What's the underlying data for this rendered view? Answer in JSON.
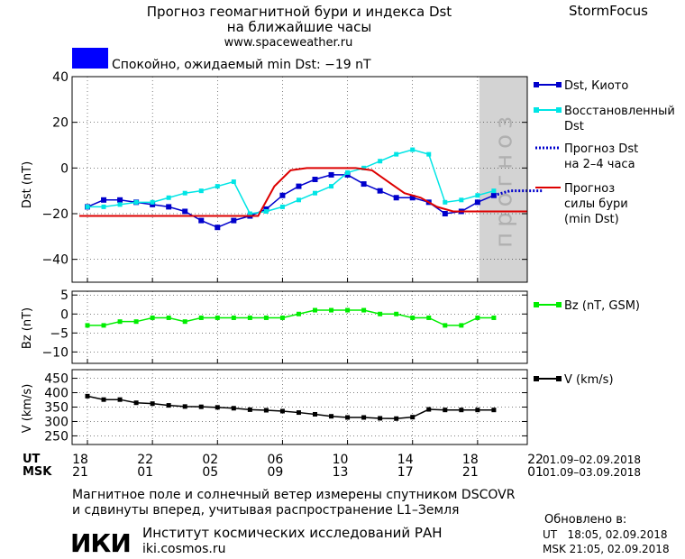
{
  "header": {
    "title_line1": "Прогноз геомагнитной бури и индекса Dst",
    "title_line2": "на ближайшие часы",
    "url": "www.spaceweather.ru",
    "brand": "StormFocus",
    "status_text": "Спокойно, ожидаемый min Dst: −19 nT",
    "status_color": "#0000ff"
  },
  "chart_data": [
    {
      "type": "line",
      "panel": "dst",
      "ylabel": "Dst (nT)",
      "ylim": [
        -50,
        40
      ],
      "yticks": [
        40,
        20,
        0,
        -20,
        -40
      ],
      "forecast_zone_label": "прогноз",
      "x_hours": [
        0,
        26
      ],
      "series": [
        {
          "name": "Dst, Киото",
          "color": "#0000cc",
          "marker": "square",
          "x": [
            0,
            1,
            2,
            3,
            4,
            5,
            6,
            7,
            8,
            9,
            10,
            11,
            12,
            13,
            14,
            15,
            16,
            17,
            18,
            19,
            20,
            21,
            22,
            23,
            24,
            25
          ],
          "y": [
            -17,
            -14,
            -14,
            -15,
            -16,
            -17,
            -19,
            -23,
            -26,
            -23,
            -21,
            -18,
            -12,
            -8,
            -5,
            -3,
            -3,
            -7,
            -10,
            -13,
            -13,
            -15,
            -20,
            -19,
            -15,
            -12
          ]
        },
        {
          "name": "Восстановленный Dst",
          "color": "#00e5e5",
          "marker": "square",
          "x": [
            0,
            1,
            2,
            3,
            4,
            5,
            6,
            7,
            8,
            9,
            10,
            11,
            12,
            13,
            14,
            15,
            16,
            17,
            18,
            19,
            20,
            21,
            22,
            23,
            24,
            25
          ],
          "y": [
            -17,
            -17,
            -16,
            -15,
            -15,
            -13,
            -11,
            -10,
            -8,
            -6,
            -20,
            -19,
            -17,
            -14,
            -11,
            -8,
            -2,
            0,
            3,
            6,
            8,
            6,
            -15,
            -14,
            -12,
            -10
          ]
        },
        {
          "name": "Прогноз Dst на 2-4 часа",
          "color": "#0000cc",
          "style": "dotted",
          "x": [
            25,
            26,
            27,
            28
          ],
          "y": [
            -12,
            -10,
            -10,
            -10
          ]
        },
        {
          "name": "Прогноз силы бури (min Dst)",
          "color": "#dd0000",
          "x": [
            -0.5,
            10.5,
            11.5,
            12.5,
            13.5,
            14.5,
            15.5,
            16.5,
            17.5,
            18.5,
            19.5,
            20.5,
            21.5,
            22.5,
            31.5
          ],
          "y": [
            -21,
            -21,
            -8,
            -1,
            0,
            0,
            0,
            0,
            -1,
            -6,
            -11,
            -13,
            -17,
            -19,
            -19
          ]
        }
      ]
    },
    {
      "type": "line",
      "panel": "bz",
      "ylabel": "Bz (nT)",
      "ylim": [
        -13,
        6
      ],
      "yticks": [
        5,
        0,
        -5,
        -10
      ],
      "series": [
        {
          "name": "Bz (nT, GSM)",
          "color": "#00ee00",
          "marker": "square",
          "x": [
            0,
            1,
            2,
            3,
            4,
            5,
            6,
            7,
            8,
            9,
            10,
            11,
            12,
            13,
            14,
            15,
            16,
            17,
            18,
            19,
            20,
            21,
            22,
            23,
            24,
            25
          ],
          "y": [
            -3,
            -3,
            -2,
            -2,
            -1,
            -1,
            -2,
            -1,
            -1,
            -1,
            -1,
            -1,
            -1,
            0,
            1,
            1,
            1,
            1,
            0,
            0,
            -1,
            -1,
            -3,
            -3,
            -1,
            -1
          ]
        }
      ]
    },
    {
      "type": "line",
      "panel": "v",
      "ylabel": "V (km/s)",
      "ylim": [
        220,
        480
      ],
      "yticks": [
        450,
        400,
        350,
        300,
        250
      ],
      "series": [
        {
          "name": "V (km/s)",
          "color": "#000000",
          "marker": "square",
          "x": [
            0,
            1,
            2,
            3,
            4,
            5,
            6,
            7,
            8,
            9,
            10,
            11,
            12,
            13,
            14,
            15,
            16,
            17,
            18,
            19,
            20,
            21,
            22,
            23,
            24,
            25
          ],
          "y": [
            388,
            376,
            376,
            365,
            362,
            356,
            352,
            351,
            349,
            346,
            341,
            339,
            336,
            331,
            325,
            318,
            314,
            314,
            311,
            310,
            315,
            342,
            340,
            340,
            340,
            340
          ]
        }
      ]
    }
  ],
  "axis": {
    "ut_label": "UT",
    "msk_label": "MSK",
    "ut_ticks": [
      "18",
      "22",
      "02",
      "06",
      "10",
      "14",
      "18",
      "22"
    ],
    "msk_ticks": [
      "21",
      "01",
      "05",
      "09",
      "13",
      "17",
      "21",
      "01"
    ],
    "ut_range": "01.09–02.09.2018",
    "msk_range": "01.09–03.09.2018"
  },
  "footer": {
    "note_line1": "Магнитное поле и солнечный ветер измерены спутником DSCOVR",
    "note_line2": "и сдвинуты вперед, учитывая распространение L1–Земля",
    "logo_text": "ИКИ",
    "institute": "Институт космических исследований РАН",
    "site": "iki.cosmos.ru",
    "updated_label": "Обновлено в:",
    "updated_ut": "UT   18:05, 02.09.2018",
    "updated_msk": "MSK 21:05, 02.09.2018"
  }
}
